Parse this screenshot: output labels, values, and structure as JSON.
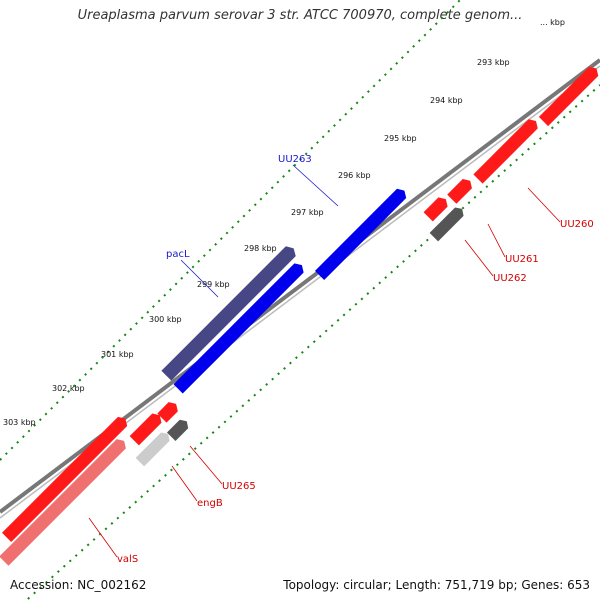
{
  "title": "Ureaplasma parvum serovar 3 str. ATCC 700970, complete genom...",
  "accession": "Accession: NC_002162",
  "summary": "Topology: circular; Length: 751,719 bp; Genes: 653",
  "ticks": [
    {
      "label": "... kbp"
    },
    {
      "label": "293 kbp"
    },
    {
      "label": "294 kbp"
    },
    {
      "label": "295 kbp"
    },
    {
      "label": "296 kbp"
    },
    {
      "label": "297 kbp"
    },
    {
      "label": "298 kbp"
    },
    {
      "label": "299 kbp"
    },
    {
      "label": "300 kbp"
    },
    {
      "label": "301 kbp"
    },
    {
      "label": "302 kbp"
    },
    {
      "label": "303 kbp"
    }
  ],
  "genes": [
    {
      "name": "UU260",
      "color": "#d40000"
    },
    {
      "name": "UU261",
      "color": "#d40000"
    },
    {
      "name": "UU262",
      "color": "#d40000"
    },
    {
      "name": "UU263",
      "color": "#1a1acc"
    },
    {
      "name": "pacL",
      "color": "#1a1acc"
    },
    {
      "name": "UU265",
      "color": "#d40000"
    },
    {
      "name": "engB",
      "color": "#d40000"
    },
    {
      "name": "valS",
      "color": "#d40000"
    }
  ],
  "colors": {
    "forward_gene": "#ff1a1a",
    "reverse_gene": "#0000ee",
    "slate_gene": "#474785",
    "gray_gene": "#555555",
    "pink_gene": "#f07070",
    "backbone": "#777777",
    "tick_track": "#118811"
  }
}
